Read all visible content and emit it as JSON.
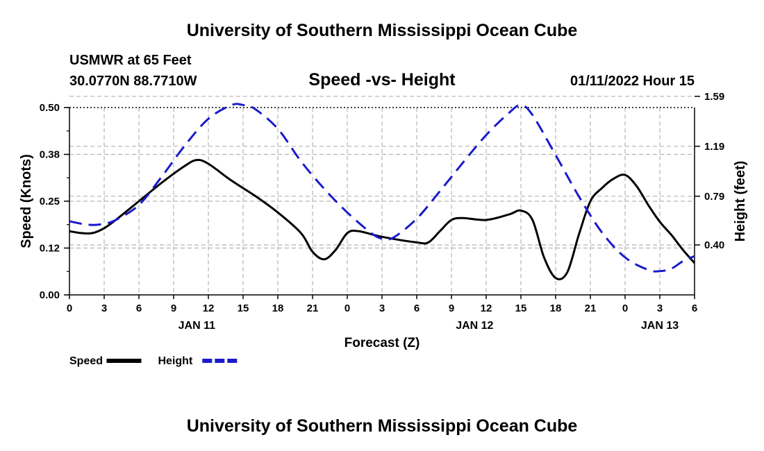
{
  "page": {
    "title_top": "University of Southern Mississippi Ocean Cube",
    "title_bottom": "University of Southern Mississippi Ocean Cube",
    "station": "USMWR at 65 Feet",
    "coords": "30.0770N  88.7710W",
    "subtitle": "Speed -vs- Height",
    "datetime": "01/11/2022 Hour 15"
  },
  "chart_data": {
    "type": "line",
    "title": "Speed -vs- Height",
    "xlabel": "Forecast (Z)",
    "ylabel": "Speed (Knots)",
    "ylabel_right": "Height (feet)",
    "x_hours_range": [
      0,
      54
    ],
    "ylim": [
      0,
      0.5
    ],
    "ylim_right": [
      -0.0,
      1.5
    ],
    "x_tick_hours": [
      0,
      3,
      6,
      9,
      12,
      15,
      18,
      21,
      24,
      27,
      30,
      33,
      36,
      39,
      42,
      45,
      48,
      51,
      54
    ],
    "x_tick_labels": [
      "0",
      "3",
      "6",
      "9",
      "12",
      "15",
      "18",
      "21",
      "0",
      "3",
      "6",
      "9",
      "12",
      "15",
      "18",
      "21",
      "0",
      "3",
      "6"
    ],
    "date_labels": [
      {
        "hour": 11,
        "label": "JAN 11"
      },
      {
        "hour": 35,
        "label": "JAN 12"
      },
      {
        "hour": 51,
        "label": "JAN 13"
      }
    ],
    "y_ticks_left": [
      {
        "value": 0.0,
        "label": "0.00"
      },
      {
        "value": 0.125,
        "label": "0.12"
      },
      {
        "value": 0.25,
        "label": "0.25"
      },
      {
        "value": 0.375,
        "label": "0.38"
      },
      {
        "value": 0.5,
        "label": "0.50"
      }
    ],
    "y_ticks_right": [
      {
        "value": 0.4,
        "label": "0.40"
      },
      {
        "value": 0.79,
        "label": "0.79"
      },
      {
        "value": 1.19,
        "label": "1.19"
      },
      {
        "value": 1.59,
        "label": "1.59"
      }
    ],
    "grid": true,
    "series": [
      {
        "name": "Speed",
        "axis": "left",
        "color": "#000000",
        "dash": "solid",
        "x": [
          0,
          1,
          2,
          3,
          4,
          6,
          8,
          10,
          11,
          12,
          14,
          16,
          18,
          20,
          21,
          22,
          23,
          24,
          25,
          27,
          30,
          31,
          32,
          33,
          34,
          36,
          38,
          39,
          40,
          41,
          42,
          43,
          44,
          45,
          46,
          47,
          48,
          49,
          50,
          51,
          52,
          53,
          54
        ],
        "y": [
          0.17,
          0.165,
          0.165,
          0.178,
          0.2,
          0.25,
          0.3,
          0.345,
          0.36,
          0.35,
          0.305,
          0.265,
          0.22,
          0.165,
          0.115,
          0.095,
          0.12,
          0.165,
          0.17,
          0.155,
          0.14,
          0.14,
          0.17,
          0.2,
          0.205,
          0.2,
          0.215,
          0.225,
          0.2,
          0.1,
          0.045,
          0.06,
          0.16,
          0.25,
          0.285,
          0.31,
          0.32,
          0.29,
          0.24,
          0.195,
          0.16,
          0.12,
          0.085
        ]
      },
      {
        "name": "Height",
        "axis": "right",
        "color": "#1a1acc",
        "dash": "dashed",
        "x": [
          0,
          1,
          2,
          3,
          4,
          6,
          8,
          10,
          12,
          14,
          15,
          16,
          18,
          20,
          22,
          24,
          26,
          27,
          28,
          30,
          32,
          34,
          36,
          38,
          39,
          40,
          42,
          44,
          46,
          48,
          50,
          51,
          52,
          53,
          54
        ],
        "y": [
          0.59,
          0.57,
          0.56,
          0.57,
          0.6,
          0.72,
          0.95,
          1.2,
          1.41,
          1.52,
          1.52,
          1.49,
          1.33,
          1.07,
          0.85,
          0.66,
          0.5,
          0.45,
          0.46,
          0.61,
          0.83,
          1.06,
          1.28,
          1.46,
          1.52,
          1.44,
          1.12,
          0.79,
          0.5,
          0.3,
          0.2,
          0.19,
          0.21,
          0.27,
          0.31
        ]
      }
    ],
    "legend": {
      "position": "bottom-left",
      "entries": [
        {
          "label": "Speed",
          "color": "#000000",
          "dash": "solid"
        },
        {
          "label": "Height",
          "color": "#1a1acc",
          "dash": "dashed"
        }
      ]
    }
  }
}
